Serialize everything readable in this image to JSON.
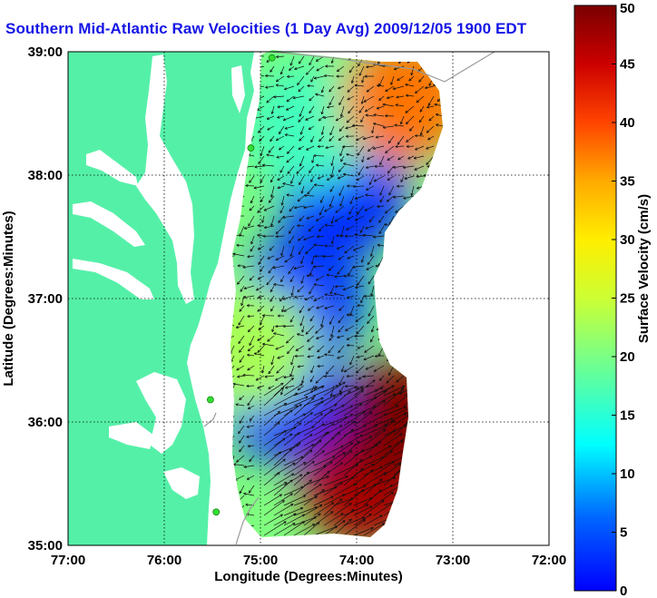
{
  "chart_data": {
    "type": "heatmap",
    "title": "Southern Mid-Atlantic Raw Velocities (1 Day Avg) 2009/12/05 1900 EDT",
    "xlabel": "Longitude (Degrees:Minutes)",
    "ylabel": "Latitude (Degrees:Minutes)",
    "colorbar_label": "Surface Velocity (cm/s)",
    "xlim": [
      -77,
      -72
    ],
    "ylim": [
      35,
      39
    ],
    "x_ticks": [
      {
        "value": -77,
        "label": "77:00"
      },
      {
        "value": -76,
        "label": "76:00"
      },
      {
        "value": -75,
        "label": "75:00"
      },
      {
        "value": -74,
        "label": "74:00"
      },
      {
        "value": -73,
        "label": "73:00"
      },
      {
        "value": -72,
        "label": "72:00"
      }
    ],
    "y_ticks": [
      {
        "value": 35,
        "label": "35:00"
      },
      {
        "value": 36,
        "label": "36:00"
      },
      {
        "value": 37,
        "label": "37:00"
      },
      {
        "value": 38,
        "label": "38:00"
      },
      {
        "value": 39,
        "label": "39:00"
      }
    ],
    "colorbar_range": [
      0,
      50
    ],
    "colorbar_ticks": [
      0,
      5,
      10,
      15,
      20,
      25,
      30,
      35,
      40,
      45,
      50
    ],
    "grid": true,
    "colormap": "jet",
    "colors": {
      "land": "#55f0a8",
      "title": "#1515e6",
      "shelf_contour": "#9a9a9a",
      "station": "#33dd33"
    },
    "radar_stations": [
      {
        "lon": -74.88,
        "lat": 38.95
      },
      {
        "lon": -75.1,
        "lat": 38.22
      },
      {
        "lon": -75.52,
        "lat": 36.18
      },
      {
        "lon": -75.46,
        "lat": 35.27
      }
    ],
    "velocity_zones": [
      {
        "lon": -74.15,
        "lat": 37.85,
        "speed": 8
      },
      {
        "lon": -74.55,
        "lat": 37.0,
        "speed": 9
      },
      {
        "lon": -74.75,
        "lat": 36.2,
        "speed": 8
      },
      {
        "lon": -74.5,
        "lat": 38.4,
        "speed": 22
      },
      {
        "lon": -73.5,
        "lat": 38.6,
        "speed": 38
      },
      {
        "lon": -73.9,
        "lat": 35.5,
        "speed": 48
      },
      {
        "lon": -73.5,
        "lat": 36.0,
        "speed": 50
      },
      {
        "lon": -75.1,
        "lat": 36.6,
        "speed": 27
      }
    ]
  }
}
